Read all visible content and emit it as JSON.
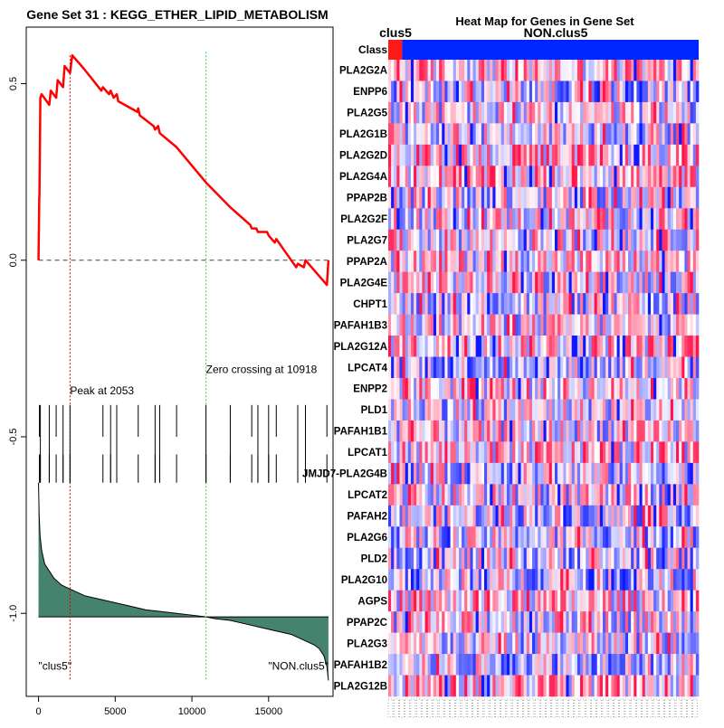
{
  "left_title": "Gene Set  31 : KEGG_ETHER_LIPID_METABOLISM",
  "right_title": "Heat Map for Genes in Gene Set",
  "chart_data": [
    {
      "type": "line",
      "name": "enrichment-plot",
      "xlim": [
        -800,
        19200
      ],
      "ylim": [
        -1.235,
        0.66
      ],
      "x_ticks": [
        0,
        5000,
        10000,
        15000
      ],
      "x_tick_labels": [
        "0",
        "5000",
        "10000",
        "15000"
      ],
      "y_ticks": [
        0.5,
        0.0,
        -0.5,
        -1.0
      ],
      "y_tick_labels": [
        "0.5",
        "0.0",
        "-0.5",
        "-1.0"
      ],
      "baseline": 0.0,
      "running_es": {
        "x": [
          0,
          50,
          60,
          120,
          200,
          700,
          800,
          1150,
          1250,
          1600,
          1700,
          2053,
          2200,
          3000,
          4100,
          4200,
          4600,
          4700,
          4900,
          5100,
          5200,
          6450,
          6500,
          6600,
          7500,
          7600,
          7800,
          7900,
          9000,
          10918,
          12500,
          13800,
          13900,
          14200,
          14300,
          14900,
          15000,
          15400,
          15500,
          16800,
          16900,
          17300,
          17400,
          18800,
          18900
        ],
        "y": [
          0.0,
          0.18,
          0.18,
          0.46,
          0.47,
          0.44,
          0.48,
          0.46,
          0.51,
          0.49,
          0.55,
          0.53,
          0.58,
          0.54,
          0.48,
          0.49,
          0.47,
          0.48,
          0.46,
          0.47,
          0.45,
          0.42,
          0.43,
          0.41,
          0.38,
          0.37,
          0.38,
          0.36,
          0.32,
          0.22,
          0.15,
          0.1,
          0.09,
          0.09,
          0.08,
          0.08,
          0.07,
          0.05,
          0.06,
          -0.02,
          -0.01,
          -0.02,
          0.0,
          -0.07,
          0.0
        ]
      },
      "peak_x": 2053,
      "zero_crossing_x": 10918,
      "peak_label": "Peak at 2053",
      "zero_label": "Zero crossing at 10918",
      "hit_positions": [
        60,
        120,
        700,
        1150,
        1600,
        2053,
        4200,
        4700,
        5100,
        6500,
        7600,
        7900,
        9000,
        10918,
        12500,
        13900,
        14300,
        15000,
        15500,
        16900,
        17400,
        18800
      ],
      "ranked_metric": {
        "x": [
          0,
          40,
          100,
          200,
          400,
          700,
          1000,
          1500,
          2000,
          3000,
          4000,
          5000,
          6000,
          7000,
          8000,
          9000,
          10000,
          10918,
          11500,
          12500,
          13500,
          14500,
          15500,
          16500,
          17000,
          17500,
          18000,
          18300,
          18600,
          18800,
          18900
        ],
        "y": [
          -0.63,
          -0.72,
          -0.78,
          -0.82,
          -0.86,
          -0.88,
          -0.9,
          -0.92,
          -0.93,
          -0.95,
          -0.96,
          -0.97,
          -0.98,
          -0.99,
          -0.995,
          -1.0,
          -1.005,
          -1.01,
          -1.015,
          -1.02,
          -1.03,
          -1.04,
          -1.05,
          -1.06,
          -1.07,
          -1.08,
          -1.09,
          -1.1,
          -1.12,
          -1.15,
          -1.19
        ]
      },
      "left_class_label": "\"clus5\"",
      "right_class_label": "\"NON.clus5\""
    },
    {
      "type": "heatmap",
      "name": "gene-heatmap",
      "class_row_label": "Class",
      "class_labels": [
        "clus5",
        "NON.clus5"
      ],
      "class_split_fraction": 0.045,
      "class_colors": [
        "#ff1a1a",
        "#0026ff"
      ],
      "n_columns": 110,
      "genes": [
        "PLA2G2A",
        "ENPP6",
        "PLA2G5",
        "PLA2G1B",
        "PLA2G2D",
        "PLA2G4A",
        "PPAP2B",
        "PLA2G2F",
        "PLA2G7",
        "PPAP2A",
        "PLA2G4E",
        "CHPT1",
        "PAFAH1B3",
        "PLA2G12A",
        "LPCAT4",
        "ENPP2",
        "PLD1",
        "PAFAH1B1",
        "LPCAT1",
        "JMJD7-PLA2G4B",
        "LPCAT2",
        "PAFAH2",
        "PLA2G6",
        "PLD2",
        "PLA2G10",
        "AGPS",
        "PPAP2C",
        "PLA2G3",
        "PAFAH1B2",
        "PLA2G12B"
      ]
    }
  ],
  "colors": {
    "es_line": "#ff0000",
    "peak_line": "#cc0000",
    "zero_line": "#33cc33",
    "metric_fill": "#45836e",
    "hit_line": "#000000",
    "axis": "#000000"
  }
}
